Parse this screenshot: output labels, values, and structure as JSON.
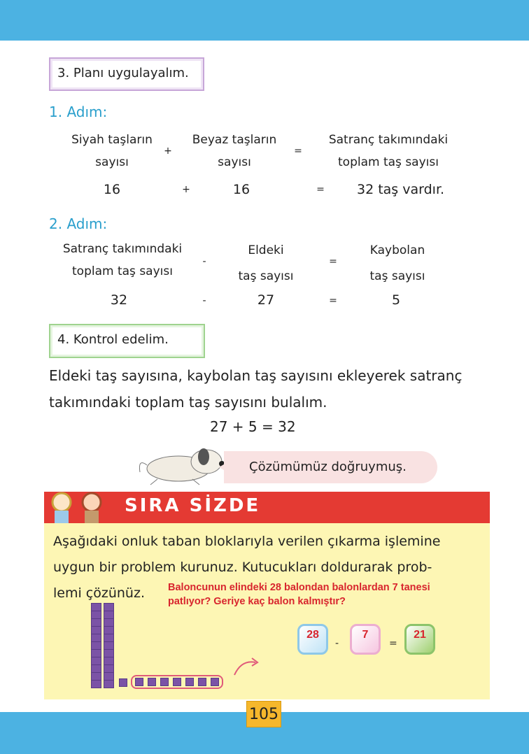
{
  "plan": {
    "title": "3. Planı uygulayalım."
  },
  "step1": {
    "title": "1. Adım:",
    "a": [
      "Siyah taşların",
      "sayısı"
    ],
    "b": [
      "Beyaz taşların",
      "sayısı"
    ],
    "c": [
      "Satranç takımındaki",
      "toplam taş sayısı"
    ],
    "plus": "+",
    "eq": "=",
    "v1": "16",
    "v2": "16",
    "v3": "32 taş vardır."
  },
  "step2": {
    "title": "2. Adım:",
    "a": [
      "Satranç takımındaki",
      "toplam taş sayısı"
    ],
    "b": [
      "Eldeki",
      "taş sayısı"
    ],
    "c": [
      "Kaybolan",
      "taş sayısı"
    ],
    "minus": "-",
    "eq": "=",
    "v1": "32",
    "v2": "27",
    "v3": "5"
  },
  "check": {
    "title": "4. Kontrol edelim.",
    "lines": [
      "Eldeki taş sayısına, kaybolan taş sayısını ekleyerek satranç",
      "takımındaki toplam taş sayısını bulalım."
    ],
    "equation": "27 + 5 = 32"
  },
  "bubble": "Çözümümüz doğruymuş.",
  "sira": {
    "title": "SIRA SİZDE",
    "lines": [
      "Aşağıdaki onluk taban bloklarıyla verilen çıkarma işlemine",
      "uygun bir problem kurunuz. Kutucukları doldurarak prob-",
      "lemi çözünüz."
    ],
    "answer": [
      "Baloncunun elindeki 28 balondan balonlardan 7 tanesi",
      "patlıyor? Geriye kaç balon kalmıştır?"
    ],
    "boxes": [
      "28",
      "7",
      "21"
    ],
    "minus": "-",
    "eq": "="
  },
  "page_number": "105"
}
